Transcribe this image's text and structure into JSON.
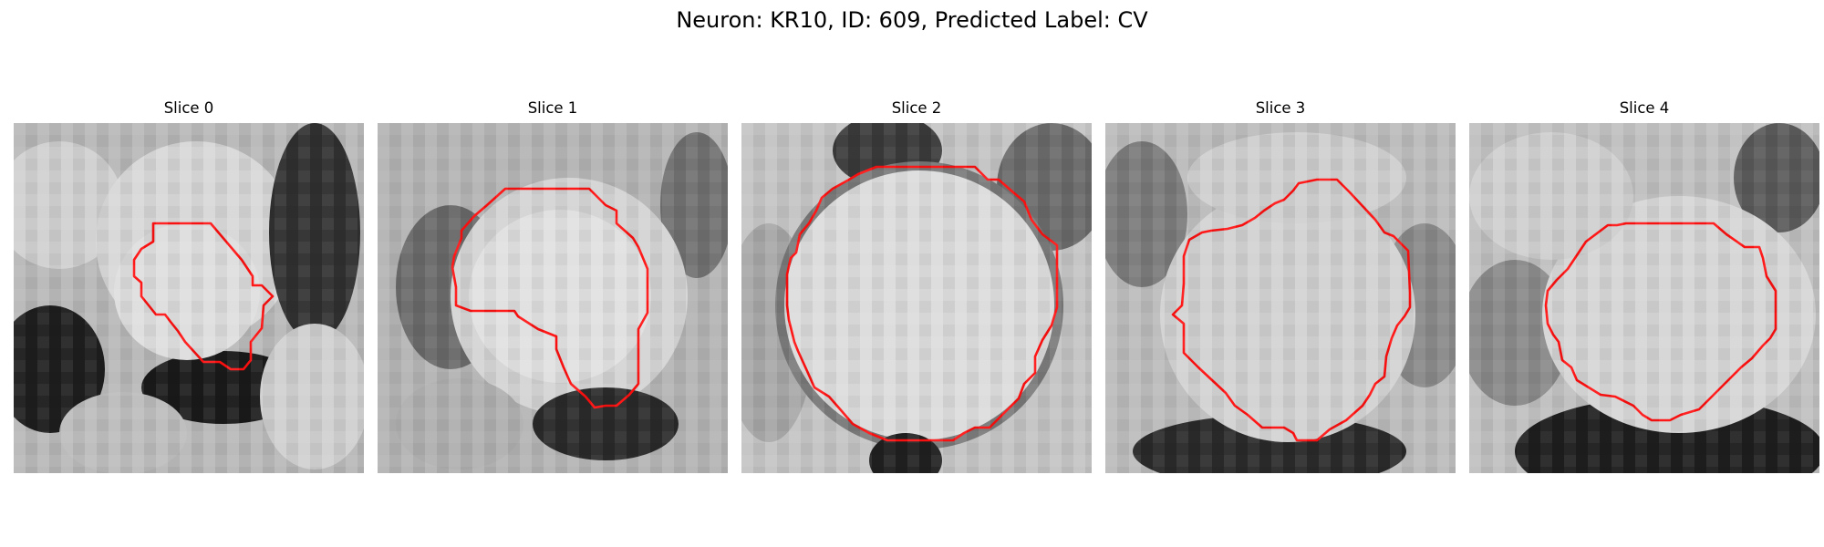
{
  "figure": {
    "title": "Neuron: KR10, ID: 609, Predicted Label: CV"
  },
  "contour_color": "#ff1010",
  "panels": [
    {
      "title": "Slice 0"
    },
    {
      "title": "Slice 1"
    },
    {
      "title": "Slice 2"
    },
    {
      "title": "Slice 3"
    },
    {
      "title": "Slice 4"
    }
  ]
}
